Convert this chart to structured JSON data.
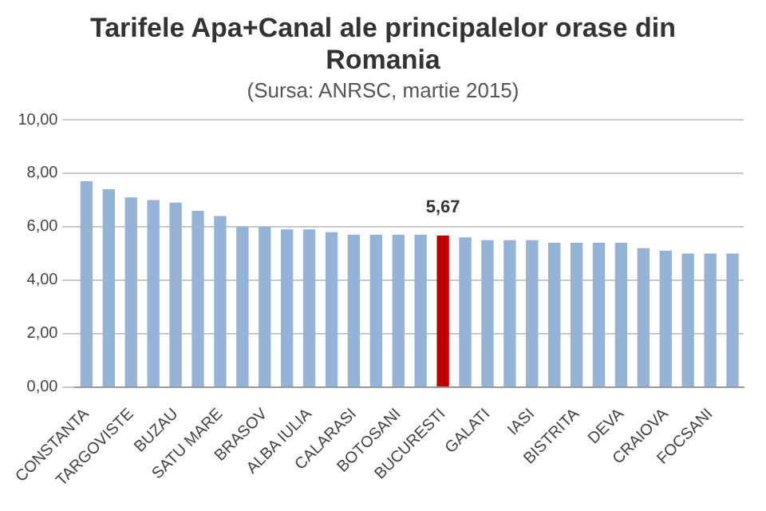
{
  "chart_data": {
    "type": "bar",
    "title": "Tarifele Apa+Canal ale principalelor orase din Romania",
    "subtitle": "(Sursa: ANRSC, martie 2015)",
    "categories": [
      "CONSTANTA",
      null,
      "TARGOVISTE",
      null,
      "BUZAU",
      null,
      "SATU MARE",
      null,
      "BRASOV",
      null,
      "ALBA IULIA",
      null,
      "CALARASI",
      null,
      "BOTOSANI",
      null,
      "BUCURESTI",
      null,
      "GALATI",
      null,
      "IASI",
      null,
      "BISTRITA",
      null,
      "DEVA",
      null,
      "CRAIOVA",
      null,
      "FOCSANI",
      null
    ],
    "values": [
      7.7,
      7.4,
      7.1,
      7.0,
      6.9,
      6.6,
      6.4,
      6.0,
      6.0,
      5.9,
      5.9,
      5.8,
      5.7,
      5.7,
      5.7,
      5.7,
      5.67,
      5.6,
      5.5,
      5.5,
      5.5,
      5.4,
      5.4,
      5.4,
      5.4,
      5.2,
      5.1,
      5.0,
      5.0,
      5.0
    ],
    "colors": [
      "#95b3d7",
      "#95b3d7",
      "#95b3d7",
      "#95b3d7",
      "#95b3d7",
      "#95b3d7",
      "#95b3d7",
      "#95b3d7",
      "#95b3d7",
      "#95b3d7",
      "#95b3d7",
      "#95b3d7",
      "#95b3d7",
      "#95b3d7",
      "#95b3d7",
      "#95b3d7",
      "#c00000",
      "#95b3d7",
      "#95b3d7",
      "#95b3d7",
      "#95b3d7",
      "#95b3d7",
      "#95b3d7",
      "#95b3d7",
      "#95b3d7",
      "#95b3d7",
      "#95b3d7",
      "#95b3d7",
      "#95b3d7",
      "#95b3d7"
    ],
    "value_labels": [
      null,
      null,
      null,
      null,
      null,
      null,
      null,
      null,
      null,
      null,
      null,
      null,
      null,
      null,
      null,
      null,
      "5,67",
      null,
      null,
      null,
      null,
      null,
      null,
      null,
      null,
      null,
      null,
      null,
      null,
      null
    ],
    "ylim": [
      0,
      10
    ],
    "yticks": [
      {
        "value": 0,
        "label": "0,00"
      },
      {
        "value": 2,
        "label": "2,00"
      },
      {
        "value": 4,
        "label": "4,00"
      },
      {
        "value": 6,
        "label": "6,00"
      },
      {
        "value": 8,
        "label": "8,00"
      },
      {
        "value": 10,
        "label": "10,00"
      }
    ],
    "grid": "y",
    "legend": false
  }
}
